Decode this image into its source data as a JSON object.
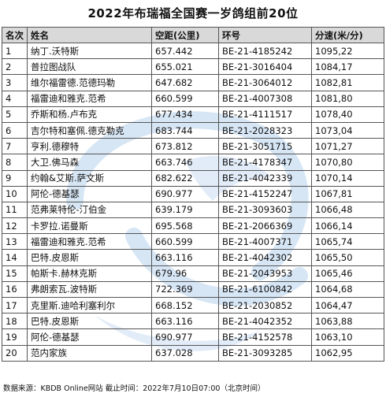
{
  "title": "2022年布瑞福全国赛一岁鸽组前20位",
  "table": {
    "headers": [
      "名次",
      "姓名",
      "空距(公里)",
      "环号",
      "分速(米/分)"
    ],
    "rows": [
      [
        "1",
        "纳丁.沃特斯",
        "657.442",
        "BE-21-4185242",
        "1095,22"
      ],
      [
        "2",
        "普拉图战队",
        "655.021",
        "BE-21-3016404",
        "1084,17"
      ],
      [
        "3",
        "维尔福雷德.范德玛勒",
        "647.682",
        "BE-21-3064012",
        "1082,81"
      ],
      [
        "4",
        "福雷迪和雅克.范希",
        "660.599",
        "BE-21-4007308",
        "1081,80"
      ],
      [
        "5",
        "乔斯和杨.卢布克",
        "677.434",
        "BE-21-4111517",
        "1078,40"
      ],
      [
        "6",
        "吉尔特和塞佩.德克勒克",
        "683.744",
        "BE-21-2028323",
        "1073,04"
      ],
      [
        "7",
        "亨利.德穆特",
        "673.812",
        "BE-21-3051715",
        "1071,27"
      ],
      [
        "8",
        "大卫.佛马森",
        "663.746",
        "BE-21-4178347",
        "1070,80"
      ],
      [
        "9",
        "约翰&艾斯.萨文斯",
        "682.622",
        "BE-21-4042339",
        "1070,14"
      ],
      [
        "10",
        "阿伦-德基瑟",
        "690.977",
        "BE-21-4152247",
        "1067,81"
      ],
      [
        "11",
        "范弗莱特伦-汀伯金",
        "639.179",
        "BE-21-3093603",
        "1066,48"
      ],
      [
        "12",
        "卡罗拉.诺曼斯",
        "695.568",
        "BE-21-2066369",
        "1066,14"
      ],
      [
        "13",
        "福雷迪和雅克.范希",
        "660.599",
        "BE-21-4007371",
        "1065,74"
      ],
      [
        "14",
        "巴特.皮恩斯",
        "663.116",
        "BE-21-4042302",
        "1065,50"
      ],
      [
        "15",
        "帕斯卡.赫林克斯",
        "679.96",
        "BE-21-2043953",
        "1065,46"
      ],
      [
        "16",
        "弗朗索瓦.波特斯",
        "722.369",
        "BE-21-6100842",
        "1064,68"
      ],
      [
        "17",
        "克里斯.迪哈利塞利尔",
        "668.152",
        "BE-21-2030852",
        "1064,47"
      ],
      [
        "18",
        "巴特.皮恩斯",
        "663.116",
        "BE-21-4042352",
        "1063,88"
      ],
      [
        "19",
        "阿伦-德基瑟",
        "690.977",
        "BE-21-4152578",
        "1063,10"
      ],
      [
        "20",
        "范内家族",
        "637.028",
        "BE-21-3093285",
        "1062,95"
      ]
    ]
  },
  "footer": "数据来源：KBDB Online网站  截止时间：2022年7月10日07:00（北京时间）",
  "colors": {
    "header_bg": "#d2d2d2",
    "border": "#555555",
    "watermark": "#cfe1f3"
  }
}
